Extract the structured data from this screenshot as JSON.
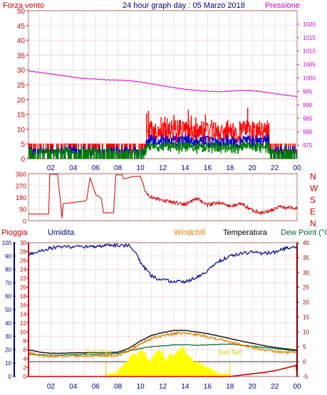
{
  "header": {
    "left_title": "Forza vento",
    "center_title": "24 hour graph day : 05 Marzo 2018",
    "right_title": "Pressione"
  },
  "legend": {
    "pioggia": "Pioggia",
    "umidita": "Umidita",
    "windchill": "Windchill",
    "temperatura": "Temperatura",
    "dewpoint": "Dew Point (°C"
  },
  "annotations": {
    "sunrise": "Sun Rise",
    "sunset": "Sun Set"
  },
  "colors": {
    "red": "#cc0000",
    "bright_red": "#ff0000",
    "blue": "#0000cc",
    "green": "#008000",
    "magenta": "#cc00cc",
    "orange": "#e08000",
    "navy": "#000080",
    "yellow": "#ffff00",
    "darkgreen": "#006633",
    "frame": "#800000"
  },
  "chart_data": [
    {
      "type": "line",
      "name": "wind-and-pressure",
      "x_ticks": [
        "02",
        "04",
        "06",
        "08",
        "10",
        "12",
        "14",
        "16",
        "18",
        "20",
        "22",
        "00"
      ],
      "yleft_ticks": [
        0,
        5,
        10,
        15,
        20,
        25,
        30,
        35,
        40,
        45,
        50
      ],
      "yright_ticks": [
        975,
        980,
        985,
        990,
        995,
        1000,
        1005,
        1010,
        1015,
        1020
      ],
      "ylim_left": [
        0,
        50
      ],
      "ylim_right": [
        970,
        1025
      ],
      "pressure": {
        "x": [
          0,
          1,
          2,
          3,
          4,
          5,
          6,
          7,
          8,
          9,
          10,
          11,
          12,
          13,
          14,
          15,
          16,
          17,
          18,
          19,
          20,
          21,
          22,
          23,
          24
        ],
        "values": [
          1002.5,
          1002.1,
          1001.5,
          1000.9,
          1000.3,
          999.8,
          999.6,
          999.3,
          999.2,
          999.0,
          998.5,
          997.8,
          997.1,
          996.4,
          995.8,
          995.4,
          995.1,
          994.9,
          995.1,
          995.4,
          995.3,
          994.8,
          994.2,
          993.6,
          993.1
        ]
      },
      "gust_max_approx": 18,
      "avg_max_approx": 8
    },
    {
      "type": "line",
      "name": "wind-direction",
      "y_ticks": [
        0,
        90,
        180,
        270,
        360
      ],
      "y_right_labels": [
        "N",
        "W",
        "S",
        "E",
        "N"
      ],
      "ylim": [
        0,
        360
      ],
      "x": [
        0,
        1.8,
        1.9,
        2.6,
        3.0,
        3.1,
        5.0,
        5.2,
        5.5,
        6.0,
        6.5,
        6.7,
        7.6,
        7.8,
        8.4,
        8.5,
        9.5,
        10.0,
        10.5,
        11.0,
        12.0,
        13.0,
        14.0,
        15.0,
        16.0,
        17.0,
        18.0,
        19.0,
        20.0,
        21.0,
        22.0,
        22.5,
        23.0,
        24.0
      ],
      "values": [
        50,
        50,
        355,
        355,
        20,
        130,
        150,
        160,
        330,
        200,
        170,
        60,
        60,
        350,
        350,
        320,
        340,
        340,
        210,
        180,
        150,
        140,
        125,
        170,
        120,
        140,
        110,
        130,
        80,
        60,
        90,
        105,
        100,
        100
      ]
    },
    {
      "type": "line",
      "name": "humidity-temperature-rain",
      "y_humidity_ticks": [
        0,
        10,
        20,
        30,
        40,
        50,
        60,
        70,
        80,
        90,
        100
      ],
      "y_rain_ticks": [
        0,
        2,
        4,
        6,
        8,
        10,
        12,
        14,
        16,
        18,
        20,
        22,
        24,
        26,
        28,
        30
      ],
      "y_temp_ticks": [
        -5,
        0,
        5,
        10,
        15,
        20,
        25,
        30,
        35,
        40
      ],
      "ylim_humidity": [
        0,
        100
      ],
      "ylim_temp": [
        -5,
        40
      ],
      "humidity": {
        "x": [
          0,
          1,
          2,
          3,
          4,
          5,
          6,
          7,
          8,
          9,
          9.5,
          10,
          11,
          12,
          13,
          14,
          15,
          16,
          17,
          18,
          19,
          20,
          21,
          22,
          23,
          24
        ],
        "values": [
          91,
          94,
          96,
          97,
          97,
          97,
          97,
          98,
          98,
          98,
          94,
          85,
          75,
          72,
          71,
          71,
          74,
          79,
          86,
          90,
          92,
          93,
          92,
          93,
          96,
          97
        ]
      },
      "temperature": {
        "x": [
          0,
          1,
          2,
          3,
          4,
          5,
          6,
          7,
          8,
          9,
          10,
          11,
          12,
          13,
          14,
          15,
          16,
          17,
          18,
          19,
          20,
          21,
          22,
          23,
          24
        ],
        "values": [
          4.0,
          3.2,
          2.8,
          2.8,
          3.0,
          3.0,
          3.0,
          3.0,
          3.2,
          4.5,
          7.0,
          8.8,
          9.8,
          10.5,
          10.5,
          10.0,
          9.4,
          8.6,
          7.8,
          6.9,
          6.2,
          5.4,
          4.8,
          4.3,
          3.9
        ]
      },
      "windchill": {
        "x": [
          0,
          1,
          2,
          3,
          4,
          5,
          6,
          7,
          8,
          9,
          10,
          11,
          12,
          13,
          14,
          15,
          16,
          17,
          18,
          19,
          20,
          21,
          22,
          23,
          24
        ],
        "values": [
          3.0,
          2.0,
          1.8,
          1.8,
          2.0,
          1.8,
          2.0,
          2.0,
          2.2,
          3.6,
          6.0,
          7.8,
          8.8,
          9.4,
          9.6,
          9.1,
          8.4,
          7.6,
          6.8,
          5.6,
          4.8,
          3.9,
          3.4,
          3.1,
          3.3
        ]
      },
      "dewpoint": {
        "x": [
          0,
          1,
          2,
          3,
          4,
          5,
          6,
          7,
          8,
          9,
          10,
          11,
          12,
          13,
          14,
          15,
          16,
          17,
          18,
          19,
          20,
          21,
          22,
          23,
          24
        ],
        "values": [
          2.5,
          2.3,
          2.2,
          2.2,
          2.4,
          2.4,
          2.4,
          2.5,
          2.8,
          3.6,
          4.4,
          5.1,
          5.3,
          5.6,
          5.7,
          5.5,
          5.6,
          5.8,
          5.9,
          5.5,
          5.2,
          4.8,
          4.4,
          4.0,
          3.6
        ]
      },
      "rain_cumulative": {
        "x": [
          0,
          18,
          19,
          20,
          21,
          22,
          23,
          23.9,
          24
        ],
        "values": [
          0,
          0,
          0.3,
          0.6,
          0.9,
          1.3,
          1.9,
          2.5,
          0.7
        ]
      },
      "solar": {
        "x": [
          6.9,
          7.5,
          8.0,
          8.5,
          9.0,
          9.3,
          9.6,
          10.0,
          10.4,
          10.8,
          11.2,
          11.6,
          12.0,
          12.3,
          12.6,
          13.0,
          13.4,
          13.8,
          14.2,
          14.6,
          15.0,
          15.5,
          16.0,
          16.5,
          17.0,
          17.5,
          18.0
        ],
        "values": [
          0,
          1,
          2,
          4,
          6,
          8,
          7,
          9,
          8,
          5,
          7,
          9,
          8,
          5,
          8,
          7,
          9,
          10,
          7,
          6,
          5,
          4,
          3,
          2,
          1,
          0.5,
          0
        ]
      },
      "sunrise_x": 6.9,
      "sunset_x": 18.0
    }
  ]
}
